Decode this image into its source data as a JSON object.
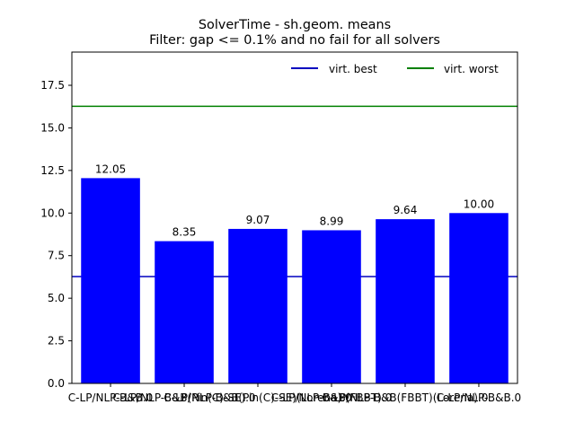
{
  "chart_data": {
    "type": "bar",
    "title_line1": "SolverTime - sh.geom. means",
    "title_line2": "Filter: gap <= 0.1% and no fail for all solvers",
    "categories": [
      "C-LP/NLP-B&B.0",
      "C-LP/NLP-B&B(Pin(C)-SE).0",
      "C-LP/NLP-B&B(Pin(C)-SE)(Lorena).0",
      "C-LP/NLP-B&B(FBBT).0",
      "C-LP/NLP-B&B(FBBT)(Lorena).0",
      "C-LP/NLP-B&B.0"
    ],
    "values": [
      12.05,
      8.35,
      9.07,
      8.99,
      9.64,
      10.0
    ],
    "value_labels": [
      "12.05",
      "8.35",
      "9.07",
      "8.99",
      "9.64",
      "10.00"
    ],
    "bar_color": "#0000ff",
    "ylim": [
      0,
      19.45
    ],
    "yticks": [
      0.0,
      2.5,
      5.0,
      7.5,
      10.0,
      12.5,
      15.0,
      17.5
    ],
    "ytick_labels": [
      "0.0",
      "2.5",
      "5.0",
      "7.5",
      "10.0",
      "12.5",
      "15.0",
      "17.5"
    ],
    "reference_lines": [
      {
        "name": "virt. best",
        "value": 6.27,
        "color": "#0000bf"
      },
      {
        "name": "virt. worst",
        "value": 16.27,
        "color": "#008000"
      }
    ],
    "legend": {
      "placement": "top-right",
      "entries": [
        "virt. best",
        "virt. worst"
      ]
    },
    "grid": false
  }
}
